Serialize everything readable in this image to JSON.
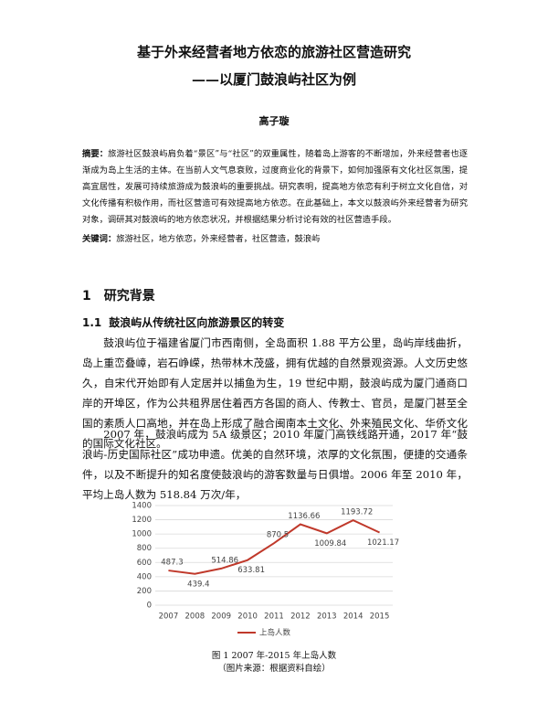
{
  "document": {
    "title": "基于外来经营者地方依恋的旅游社区营造研究",
    "subtitle": "——以厦门鼓浪屿社区为例",
    "author": "高子璇",
    "abstract_label": "摘要：",
    "abstract": "旅游社区鼓浪屿肩负着“景区”与“社区”的双重属性，随着岛上游客的不断增加，外来经营者也逐渐成为岛上生活的主体。在当前人文气息衰败，过度商业化的背景下，如何加强原有文化社区氛围，提高宜居性，发展可持续旅游成为鼓浪屿的重要挑战。研究表明，提高地方依恋有利于树立文化自信，对文化传播有积极作用，而社区营造可有效提高地方依恋。在此基础上，本文以鼓浪屿外来经营者为研究对象，调研其对鼓浪屿的地方依恋状况，并根据结果分析讨论有效的社区营造手段。",
    "keywords_label": "关键词：",
    "keywords": "旅游社区，地方依恋，外来经营者，社区营造，鼓浪屿",
    "section": {
      "number": "1",
      "title": "研究背景"
    },
    "subsection": {
      "number": "1.1",
      "title": "鼓浪屿从传统社区向旅游景区的转变"
    },
    "paragraphs": [
      "鼓浪屿位于福建省厦门市西南侧，全岛面积 1.88 平方公里，岛屿岸线曲折，岛上重峦叠嶂，岩石峥嵘，热带林木茂盛，拥有优越的自然景观资源。人文历史悠久，自宋代开始即有人定居并以捕鱼为生，19 世纪中期，鼓浪屿成为厦门通商口岸的开埠区，作为公共租界居住着西方各国的商人、传教士、官员，是厦门甚至全国的素质人口高地，并在岛上形成了融合闽南本土文化、外来殖民文化、华侨文化的国际文化社区。",
      "2007 年，鼓浪屿成为 5A 级景区；2010 年厦门高铁线路开通，2017 年“鼓浪屿-历史国际社区”成功申遗。优美的自然环境，浓厚的文化氛围，便捷的交通条件，以及不断提升的知名度使鼓浪屿的游客数量与日俱增。2006 年至 2010 年，平均上岛人数为 518.84 万次/年，"
    ]
  },
  "chart_data": {
    "type": "line",
    "title": "图 1  2007 年-2015 年上岛人数",
    "source": "（图片来源：根据资料自绘）",
    "categories": [
      "2007",
      "2008",
      "2009",
      "2010",
      "2011",
      "2012",
      "2013",
      "2014",
      "2015"
    ],
    "series": [
      {
        "name": "上岛人数",
        "color": "#c0392b",
        "values": [
          487.3,
          439.4,
          514.86,
          633.81,
          870.5,
          1136.66,
          1009.84,
          1193.72,
          1021.17
        ]
      }
    ],
    "ylim": [
      0,
      1400
    ],
    "yticks": [
      0,
      200,
      400,
      600,
      800,
      1000,
      1200,
      1400
    ],
    "grid": true,
    "legend": "bottom"
  }
}
